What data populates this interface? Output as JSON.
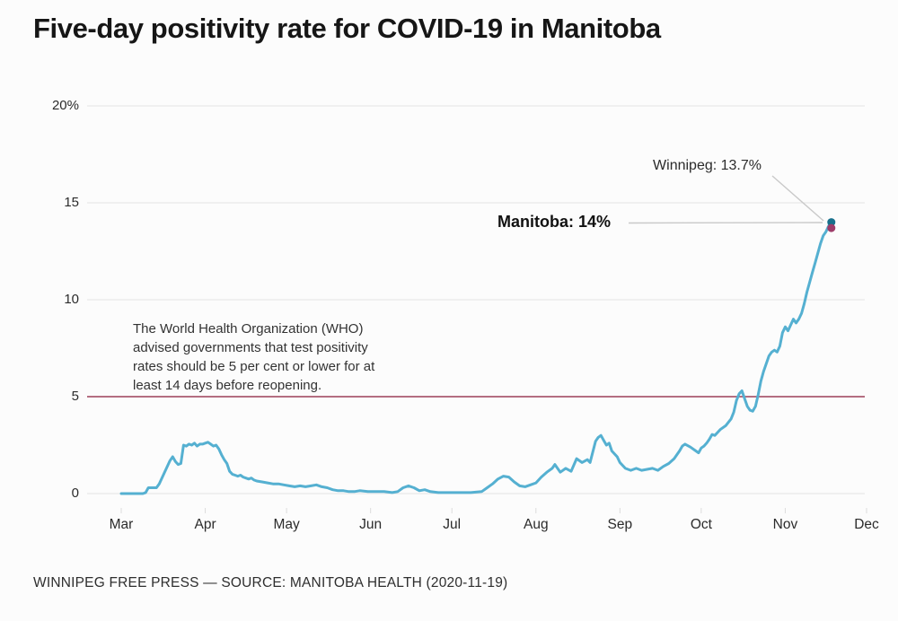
{
  "title": "Five-day positivity rate for COVID-19 in Manitoba",
  "footer": "WINNIPEG FREE PRESS — SOURCE: MANITOBA HEALTH (2020-11-19)",
  "colors": {
    "line": "#55b0d1",
    "manitoba_dot": "#17708c",
    "winnipeg_dot": "#9d3c69",
    "reference_line": "#9c3f58",
    "gridline": "#e4e4e4",
    "tick": "#dcdcdc",
    "leader_line": "#c9c9c9"
  },
  "annotations": {
    "who_note_lines": [
      "The World Health Organization (WHO)",
      "advised governments that test positivity",
      "rates should be 5 per cent or lower for at",
      "least 14 days before reopening."
    ],
    "manitoba_label": "Manitoba: 14%",
    "winnipeg_label": "Winnipeg: 13.7%"
  },
  "chart_data": {
    "type": "line",
    "title": "Five-day positivity rate for COVID-19 in Manitoba",
    "grid": "horizontal only",
    "legend": "none",
    "x_axis": {
      "start_date": "2020-03-01",
      "end_date": "2020-12-01",
      "tick_labels": [
        "Mar",
        "Apr",
        "May",
        "Jun",
        "Jul",
        "Aug",
        "Sep",
        "Oct",
        "Nov",
        "Dec"
      ],
      "tick_dates": [
        "2020-03-01",
        "2020-04-01",
        "2020-05-01",
        "2020-06-01",
        "2020-07-01",
        "2020-08-01",
        "2020-09-01",
        "2020-10-01",
        "2020-11-01",
        "2020-12-01"
      ]
    },
    "y_axis": {
      "unit": "percent",
      "range": [
        0,
        20
      ],
      "ticks": [
        0,
        5,
        10,
        15,
        20
      ],
      "tick_labels": [
        "0",
        "5",
        "10",
        "15",
        "20%"
      ]
    },
    "reference_line": {
      "value": 5,
      "note": "WHO advised threshold of 5 per cent"
    },
    "end_markers": [
      {
        "name": "Manitoba",
        "label": "Manitoba: 14%",
        "value": 14,
        "date": "2020-11-18",
        "color": "#17708c"
      },
      {
        "name": "Winnipeg",
        "label": "Winnipeg: 13.7%",
        "value": 13.7,
        "date": "2020-11-18",
        "color": "#9d3c69"
      }
    ],
    "series": [
      {
        "name": "Manitoba five-day test positivity rate",
        "color": "#55b0d1",
        "points": [
          [
            "2020-03-01",
            0
          ],
          [
            "2020-03-05",
            0
          ],
          [
            "2020-03-09",
            0
          ],
          [
            "2020-03-10",
            0.05
          ],
          [
            "2020-03-11",
            0.3
          ],
          [
            "2020-03-12",
            0.3
          ],
          [
            "2020-03-14",
            0.3
          ],
          [
            "2020-03-15",
            0.5
          ],
          [
            "2020-03-16",
            0.8
          ],
          [
            "2020-03-17",
            1.1
          ],
          [
            "2020-03-18",
            1.4
          ],
          [
            "2020-03-19",
            1.7
          ],
          [
            "2020-03-20",
            1.9
          ],
          [
            "2020-03-21",
            1.65
          ],
          [
            "2020-03-22",
            1.5
          ],
          [
            "2020-03-23",
            1.55
          ],
          [
            "2020-03-24",
            2.5
          ],
          [
            "2020-03-25",
            2.45
          ],
          [
            "2020-03-26",
            2.55
          ],
          [
            "2020-03-27",
            2.5
          ],
          [
            "2020-03-28",
            2.6
          ],
          [
            "2020-03-29",
            2.45
          ],
          [
            "2020-03-30",
            2.55
          ],
          [
            "2020-03-31",
            2.55
          ],
          [
            "2020-04-01",
            2.6
          ],
          [
            "2020-04-02",
            2.65
          ],
          [
            "2020-04-03",
            2.55
          ],
          [
            "2020-04-04",
            2.45
          ],
          [
            "2020-04-05",
            2.5
          ],
          [
            "2020-04-06",
            2.3
          ],
          [
            "2020-04-07",
            2.0
          ],
          [
            "2020-04-08",
            1.75
          ],
          [
            "2020-04-09",
            1.55
          ],
          [
            "2020-04-10",
            1.15
          ],
          [
            "2020-04-11",
            1.0
          ],
          [
            "2020-04-12",
            0.95
          ],
          [
            "2020-04-13",
            0.9
          ],
          [
            "2020-04-14",
            0.95
          ],
          [
            "2020-04-15",
            0.85
          ],
          [
            "2020-04-16",
            0.8
          ],
          [
            "2020-04-17",
            0.75
          ],
          [
            "2020-04-18",
            0.8
          ],
          [
            "2020-04-19",
            0.7
          ],
          [
            "2020-04-20",
            0.65
          ],
          [
            "2020-04-22",
            0.6
          ],
          [
            "2020-04-24",
            0.55
          ],
          [
            "2020-04-26",
            0.5
          ],
          [
            "2020-04-28",
            0.5
          ],
          [
            "2020-04-30",
            0.45
          ],
          [
            "2020-05-02",
            0.4
          ],
          [
            "2020-05-04",
            0.35
          ],
          [
            "2020-05-06",
            0.4
          ],
          [
            "2020-05-08",
            0.35
          ],
          [
            "2020-05-10",
            0.4
          ],
          [
            "2020-05-12",
            0.45
          ],
          [
            "2020-05-14",
            0.35
          ],
          [
            "2020-05-16",
            0.3
          ],
          [
            "2020-05-18",
            0.2
          ],
          [
            "2020-05-20",
            0.15
          ],
          [
            "2020-05-22",
            0.15
          ],
          [
            "2020-05-24",
            0.1
          ],
          [
            "2020-05-26",
            0.1
          ],
          [
            "2020-05-28",
            0.15
          ],
          [
            "2020-05-31",
            0.1
          ],
          [
            "2020-06-03",
            0.1
          ],
          [
            "2020-06-06",
            0.1
          ],
          [
            "2020-06-09",
            0.05
          ],
          [
            "2020-06-11",
            0.1
          ],
          [
            "2020-06-13",
            0.3
          ],
          [
            "2020-06-15",
            0.4
          ],
          [
            "2020-06-17",
            0.3
          ],
          [
            "2020-06-19",
            0.15
          ],
          [
            "2020-06-21",
            0.2
          ],
          [
            "2020-06-23",
            0.1
          ],
          [
            "2020-06-26",
            0.05
          ],
          [
            "2020-06-30",
            0.05
          ],
          [
            "2020-07-04",
            0.05
          ],
          [
            "2020-07-08",
            0.05
          ],
          [
            "2020-07-12",
            0.1
          ],
          [
            "2020-07-14",
            0.3
          ],
          [
            "2020-07-16",
            0.5
          ],
          [
            "2020-07-18",
            0.75
          ],
          [
            "2020-07-20",
            0.9
          ],
          [
            "2020-07-22",
            0.85
          ],
          [
            "2020-07-24",
            0.6
          ],
          [
            "2020-07-26",
            0.4
          ],
          [
            "2020-07-28",
            0.35
          ],
          [
            "2020-07-30",
            0.45
          ],
          [
            "2020-08-01",
            0.55
          ],
          [
            "2020-08-03",
            0.85
          ],
          [
            "2020-08-05",
            1.1
          ],
          [
            "2020-08-07",
            1.3
          ],
          [
            "2020-08-08",
            1.5
          ],
          [
            "2020-08-10",
            1.1
          ],
          [
            "2020-08-12",
            1.3
          ],
          [
            "2020-08-14",
            1.15
          ],
          [
            "2020-08-16",
            1.8
          ],
          [
            "2020-08-18",
            1.6
          ],
          [
            "2020-08-20",
            1.75
          ],
          [
            "2020-08-21",
            1.6
          ],
          [
            "2020-08-23",
            2.7
          ],
          [
            "2020-08-24",
            2.9
          ],
          [
            "2020-08-25",
            3.0
          ],
          [
            "2020-08-26",
            2.75
          ],
          [
            "2020-08-27",
            2.5
          ],
          [
            "2020-08-28",
            2.6
          ],
          [
            "2020-08-29",
            2.2
          ],
          [
            "2020-08-31",
            1.9
          ],
          [
            "2020-09-01",
            1.6
          ],
          [
            "2020-09-03",
            1.3
          ],
          [
            "2020-09-05",
            1.2
          ],
          [
            "2020-09-07",
            1.3
          ],
          [
            "2020-09-09",
            1.2
          ],
          [
            "2020-09-11",
            1.25
          ],
          [
            "2020-09-13",
            1.3
          ],
          [
            "2020-09-15",
            1.2
          ],
          [
            "2020-09-17",
            1.4
          ],
          [
            "2020-09-19",
            1.55
          ],
          [
            "2020-09-21",
            1.8
          ],
          [
            "2020-09-23",
            2.2
          ],
          [
            "2020-09-24",
            2.45
          ],
          [
            "2020-09-25",
            2.55
          ],
          [
            "2020-09-27",
            2.4
          ],
          [
            "2020-09-29",
            2.2
          ],
          [
            "2020-09-30",
            2.1
          ],
          [
            "2020-10-01",
            2.35
          ],
          [
            "2020-10-02",
            2.45
          ],
          [
            "2020-10-03",
            2.6
          ],
          [
            "2020-10-04",
            2.8
          ],
          [
            "2020-10-05",
            3.05
          ],
          [
            "2020-10-06",
            3.0
          ],
          [
            "2020-10-07",
            3.15
          ],
          [
            "2020-10-08",
            3.3
          ],
          [
            "2020-10-10",
            3.5
          ],
          [
            "2020-10-12",
            3.85
          ],
          [
            "2020-10-13",
            4.2
          ],
          [
            "2020-10-14",
            4.8
          ],
          [
            "2020-10-15",
            5.15
          ],
          [
            "2020-10-16",
            5.3
          ],
          [
            "2020-10-17",
            4.9
          ],
          [
            "2020-10-18",
            4.5
          ],
          [
            "2020-10-19",
            4.3
          ],
          [
            "2020-10-20",
            4.25
          ],
          [
            "2020-10-21",
            4.5
          ],
          [
            "2020-10-22",
            5.1
          ],
          [
            "2020-10-23",
            5.8
          ],
          [
            "2020-10-24",
            6.3
          ],
          [
            "2020-10-25",
            6.7
          ],
          [
            "2020-10-26",
            7.1
          ],
          [
            "2020-10-27",
            7.3
          ],
          [
            "2020-10-28",
            7.4
          ],
          [
            "2020-10-29",
            7.3
          ],
          [
            "2020-10-30",
            7.6
          ],
          [
            "2020-10-31",
            8.3
          ],
          [
            "2020-11-01",
            8.6
          ],
          [
            "2020-11-02",
            8.4
          ],
          [
            "2020-11-03",
            8.7
          ],
          [
            "2020-11-04",
            9.0
          ],
          [
            "2020-11-05",
            8.8
          ],
          [
            "2020-11-06",
            9.0
          ],
          [
            "2020-11-07",
            9.3
          ],
          [
            "2020-11-08",
            9.8
          ],
          [
            "2020-11-09",
            10.4
          ],
          [
            "2020-11-10",
            10.9
          ],
          [
            "2020-11-11",
            11.4
          ],
          [
            "2020-11-12",
            11.9
          ],
          [
            "2020-11-13",
            12.4
          ],
          [
            "2020-11-14",
            12.9
          ],
          [
            "2020-11-15",
            13.3
          ],
          [
            "2020-11-16",
            13.5
          ],
          [
            "2020-11-17",
            13.8
          ],
          [
            "2020-11-18",
            14.0
          ]
        ]
      }
    ]
  }
}
